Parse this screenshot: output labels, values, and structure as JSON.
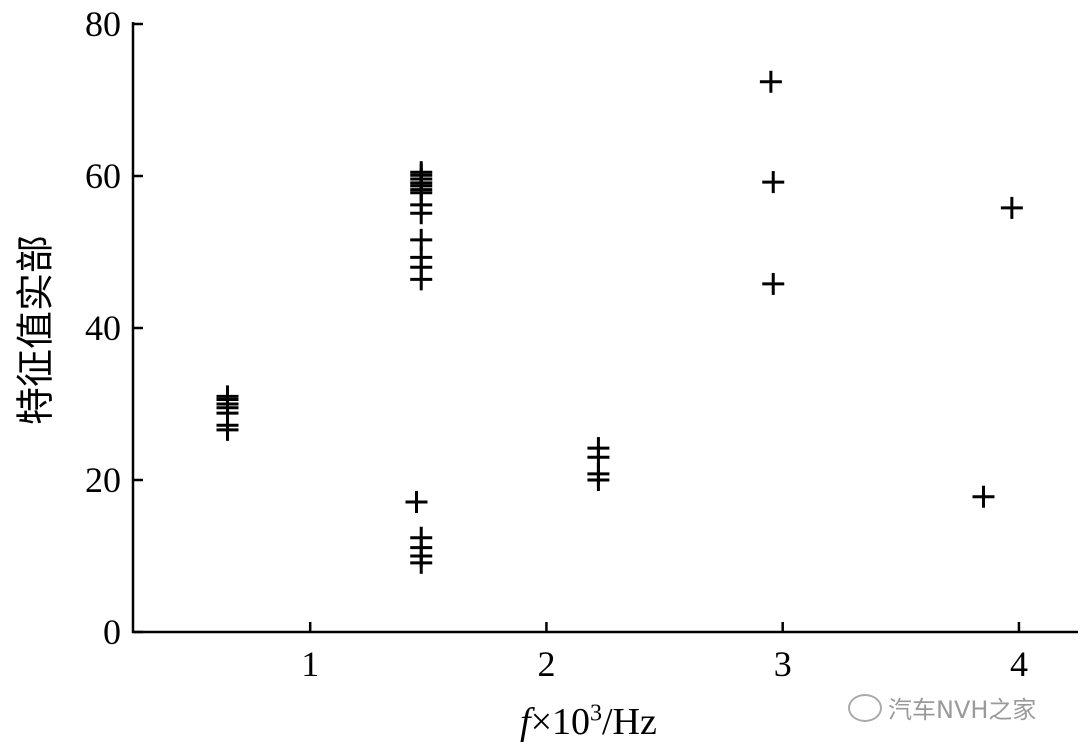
{
  "chart_data": {
    "type": "scatter",
    "marker": "plus",
    "color": "#000000",
    "xlabel": "f×10³/Hz",
    "xlabel_parts": {
      "var": "f",
      "mid": "×10",
      "sup": "3",
      "unit": "/Hz"
    },
    "ylabel": "特征值实部",
    "xlim": [
      0.25,
      4.25
    ],
    "ylim": [
      0,
      80
    ],
    "xticks": [
      1,
      2,
      3,
      4
    ],
    "yticks": [
      0,
      20,
      40,
      60,
      80
    ],
    "grid": false,
    "points": [
      {
        "x": 0.65,
        "y": 31.0
      },
      {
        "x": 0.65,
        "y": 30.6
      },
      {
        "x": 0.65,
        "y": 30.0
      },
      {
        "x": 0.65,
        "y": 29.5
      },
      {
        "x": 0.65,
        "y": 28.8
      },
      {
        "x": 0.65,
        "y": 27.2
      },
      {
        "x": 0.65,
        "y": 26.6
      },
      {
        "x": 1.47,
        "y": 60.5
      },
      {
        "x": 1.47,
        "y": 60.1
      },
      {
        "x": 1.47,
        "y": 59.6
      },
      {
        "x": 1.47,
        "y": 59.1
      },
      {
        "x": 1.47,
        "y": 58.7
      },
      {
        "x": 1.47,
        "y": 58.2
      },
      {
        "x": 1.47,
        "y": 57.8
      },
      {
        "x": 1.47,
        "y": 56.2
      },
      {
        "x": 1.47,
        "y": 55.1
      },
      {
        "x": 1.47,
        "y": 51.6
      },
      {
        "x": 1.47,
        "y": 49.3
      },
      {
        "x": 1.47,
        "y": 48.0
      },
      {
        "x": 1.47,
        "y": 46.4
      },
      {
        "x": 1.45,
        "y": 17.1
      },
      {
        "x": 1.47,
        "y": 12.4
      },
      {
        "x": 1.47,
        "y": 11.1
      },
      {
        "x": 1.47,
        "y": 10.0
      },
      {
        "x": 1.47,
        "y": 9.1
      },
      {
        "x": 2.22,
        "y": 24.2
      },
      {
        "x": 2.22,
        "y": 23.0
      },
      {
        "x": 2.22,
        "y": 20.8
      },
      {
        "x": 2.22,
        "y": 20.0
      },
      {
        "x": 2.95,
        "y": 72.4
      },
      {
        "x": 2.96,
        "y": 59.2
      },
      {
        "x": 2.96,
        "y": 45.8
      },
      {
        "x": 3.97,
        "y": 55.8
      },
      {
        "x": 3.85,
        "y": 17.8
      }
    ]
  },
  "watermark": "汽车NVH之家"
}
